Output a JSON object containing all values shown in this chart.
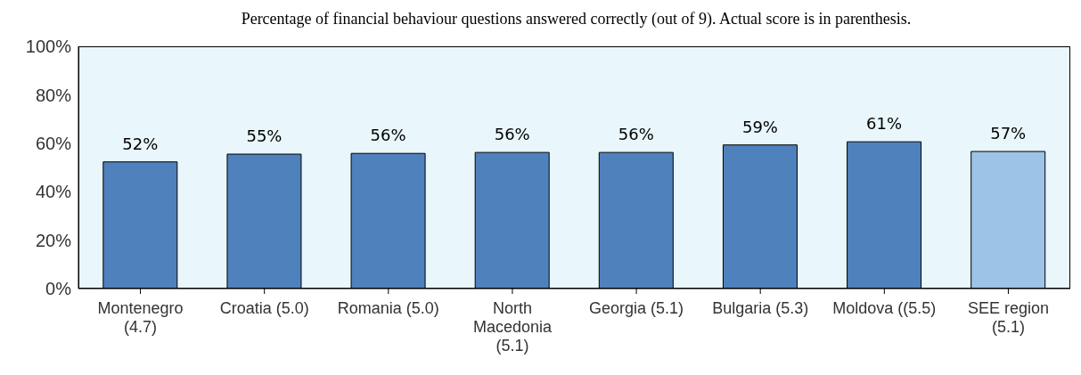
{
  "chart_data": {
    "type": "bar",
    "title": "Percentage of financial behaviour questions answered correctly (out of 9). Actual score is in parenthesis.",
    "categories": [
      "Montenegro (4.7)",
      "Croatia (5.0)",
      "Romania (5.0)",
      "North Macedonia (5.1)",
      "Georgia (5.1)",
      "Bulgaria (5.3)",
      "Moldova ((5.5)",
      "SEE region (5.1)"
    ],
    "values": [
      52.3,
      55.5,
      55.8,
      56.2,
      56.2,
      59.3,
      60.6,
      56.6
    ],
    "value_labels": [
      "52%",
      "55%",
      "56%",
      "56%",
      "56%",
      "59%",
      "61%",
      "57%"
    ],
    "colors": [
      "#4f81bd",
      "#4f81bd",
      "#4f81bd",
      "#4f81bd",
      "#4f81bd",
      "#4f81bd",
      "#4f81bd",
      "#9dc3e6"
    ],
    "ylim": [
      0,
      100
    ],
    "yticks": [
      {
        "value": 0,
        "label": "0%"
      },
      {
        "value": 20,
        "label": "20%"
      },
      {
        "value": 40,
        "label": "40%"
      },
      {
        "value": 60,
        "label": "60%"
      },
      {
        "value": 80,
        "label": "80%"
      },
      {
        "value": 100,
        "label": "100%"
      }
    ]
  }
}
